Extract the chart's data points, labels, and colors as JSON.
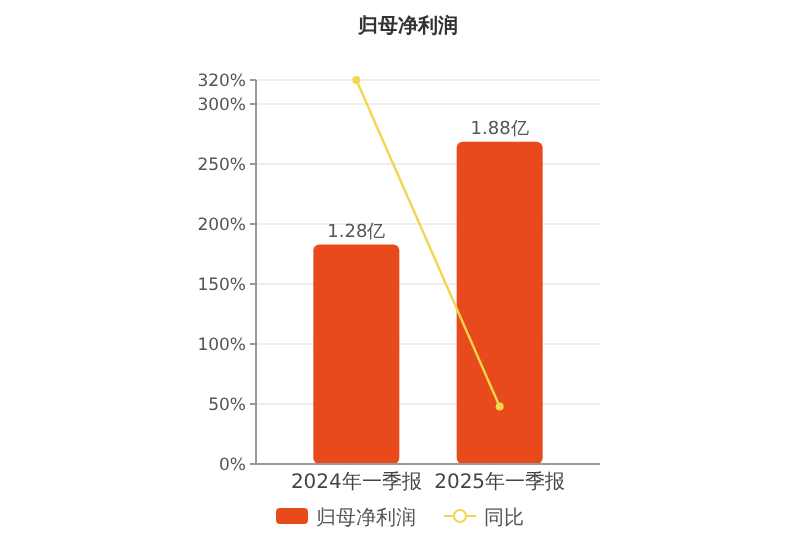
{
  "chart_data": {
    "type": "bar",
    "title": "归母净利润",
    "categories": [
      "2024年一季报",
      "2025年一季报"
    ],
    "series": [
      {
        "name": "归母净利润",
        "color": "#e84a1b",
        "values": [
          1.28,
          1.88
        ],
        "value_labels": [
          "1.28亿",
          "1.88亿"
        ],
        "axis": "y2"
      },
      {
        "name": "同比",
        "type": "line",
        "color": "#f2d64b",
        "values": [
          320,
          48
        ],
        "marker": "circle"
      }
    ],
    "ylim": [
      0,
      320
    ],
    "yticks": [
      {
        "value": 0,
        "label": "0%"
      },
      {
        "value": 50,
        "label": "50%"
      },
      {
        "value": 100,
        "label": "100%"
      },
      {
        "value": 150,
        "label": "150%"
      },
      {
        "value": 200,
        "label": "200%"
      },
      {
        "value": 250,
        "label": "250%"
      },
      {
        "value": 300,
        "label": "300%"
      },
      {
        "value": 320,
        "label": "320%"
      }
    ],
    "y2lim": [
      0,
      2.24
    ],
    "grid": "y",
    "legend": "bottom"
  }
}
